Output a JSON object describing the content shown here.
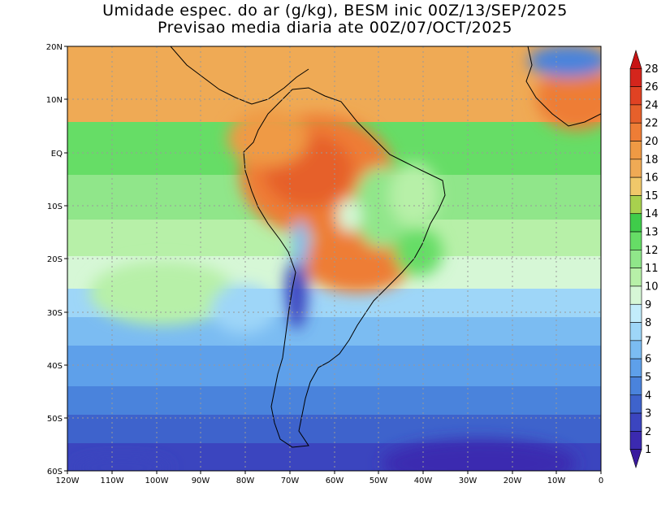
{
  "title_line1": "Umidade espec. do ar (g/kg), BESM inic 00Z/13/SEP/2025",
  "title_line2": "Previsao media diaria ate 00Z/07/OCT/2025",
  "lat_labels": [
    "20N",
    "10N",
    "EQ",
    "10S",
    "20S",
    "30S",
    "40S",
    "50S",
    "60S"
  ],
  "lon_labels": [
    "120W",
    "110W",
    "100W",
    "90W",
    "80W",
    "70W",
    "60W",
    "50W",
    "40W",
    "30W",
    "20W",
    "10W",
    "0"
  ],
  "colorbar": {
    "levels": [
      "1",
      "2",
      "3",
      "4",
      "5",
      "6",
      "7",
      "8",
      "9",
      "10",
      "11",
      "12",
      "13",
      "14",
      "15",
      "16",
      "18",
      "20",
      "22",
      "24",
      "26",
      "28"
    ],
    "colors": [
      "#3a1a9e",
      "#3b2ab0",
      "#3b45bf",
      "#3e63cc",
      "#4a83dc",
      "#5ea0ea",
      "#7bbcf2",
      "#9ed6f8",
      "#c2ecfb",
      "#d6f7d6",
      "#b7f0a8",
      "#90e68a",
      "#66dd66",
      "#3fcc4a",
      "#a8d14e",
      "#f0c86a",
      "#efaa55",
      "#ef9a44",
      "#ee7d36",
      "#e6602b",
      "#e04223",
      "#d4251c",
      "#c81414"
    ]
  },
  "map": {
    "lon_range": [
      -120,
      0
    ],
    "lat_range": [
      -60,
      20
    ]
  }
}
